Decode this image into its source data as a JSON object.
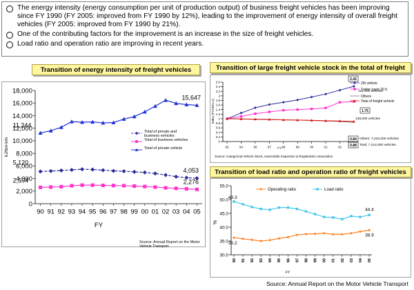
{
  "notes": [
    "The energy intensity (energy consumption per unit of production output) of business freight vehicles has been improving since FY 1990 (FY 2005: improved from FY 1990 by 12%), leading to the improvement of energy intensity of overall freight vehicles (FY 2005: improved from FY 1990 by 21%).",
    "One of the contributing factors for the improvement is an increase in the size of freight vehicles.",
    "Load ratio and operation ratio are improving in recent years."
  ],
  "titles": {
    "energy": "Transition of energy intensity of freight vehicles",
    "stock": "Transition of large freight vehicle stock in the total of freight vehicles",
    "load": "Transition of load ratio and operation ratio of freight vehicles"
  },
  "sources": {
    "energy": "Source:  Annual Report on the Motor Vehicle Transport",
    "stock": "Source:  Categorical  Vehicle  Stock,  Automobile  Inspection  &  Registration  Association",
    "bottom": "Source: Annual Report on the Motor Vehicle Transport"
  },
  "colors": {
    "title_bg": "#fff6a0",
    "navy": "#2a2a9a",
    "blue": "#1d2fd6",
    "magenta": "#ff33cc",
    "red": "#e01010",
    "orange": "#ff7f1e",
    "cyan": "#44c6ea"
  },
  "chart_data": [
    {
      "id": "energy",
      "type": "line",
      "x": [
        "90",
        "91",
        "92",
        "93",
        "94",
        "95",
        "96",
        "97",
        "98",
        "99",
        "00",
        "01",
        "02",
        "03",
        "04",
        "05"
      ],
      "xlabel": "FY",
      "ylabel": "kJ/ton-km",
      "ylim": [
        0,
        18000
      ],
      "yticks": [
        "0",
        "2,000",
        "4,000",
        "6,000",
        "8,000",
        "10,000",
        "12,000",
        "14,000",
        "16,000",
        "18,000"
      ],
      "grid": false,
      "legend_position": "center-right",
      "series": [
        {
          "name": "Total of private and business vehicles",
          "color": "#2a2a9a",
          "marker": "diamond",
          "dashed": true,
          "values": [
            5120,
            5180,
            5280,
            5380,
            5480,
            5430,
            5330,
            5220,
            5160,
            5060,
            4960,
            4800,
            4560,
            4300,
            4130,
            4053
          ]
        },
        {
          "name": "Total of business vehicles",
          "color": "#ff33cc",
          "marker": "square",
          "dashed": false,
          "values": [
            2594,
            2640,
            2700,
            2850,
            2950,
            2950,
            2910,
            2890,
            2860,
            2800,
            2730,
            2640,
            2520,
            2440,
            2360,
            2276
          ]
        },
        {
          "name": "Total of private vehicle",
          "color": "#1d2fd6",
          "marker": "triangle",
          "dashed": false,
          "values": [
            11244,
            11600,
            12150,
            13050,
            12950,
            13000,
            12850,
            12900,
            13450,
            13850,
            14600,
            15500,
            16450,
            15950,
            15750,
            15647
          ]
        }
      ],
      "data_labels": [
        {
          "text": "11,244",
          "series": 2,
          "index": 0
        },
        {
          "text": "15,647",
          "series": 2,
          "index": 15
        },
        {
          "text": "5,120",
          "series": 0,
          "index": 0
        },
        {
          "text": "4,053",
          "series": 0,
          "index": 15
        },
        {
          "text": "2,594",
          "series": 1,
          "index": 0
        },
        {
          "text": "2,276",
          "series": 1,
          "index": 15
        }
      ]
    },
    {
      "id": "stock",
      "type": "line",
      "x": [
        "92",
        "94",
        "96",
        "97",
        "98",
        "99",
        "00",
        "01",
        "02",
        "03"
      ],
      "xlabel": "FY",
      "ylabel": "Index (FY1991=1)",
      "ylim": [
        0,
        2.6
      ],
      "yticks": [
        "0",
        "0.2",
        "0.4",
        "0.6",
        "0.8",
        "1",
        "1.2",
        "1.4",
        "1.6",
        "1.8",
        "2",
        "2.2",
        "2.4",
        "2.6"
      ],
      "legend_position": "top-right",
      "series": [
        {
          "name": "20t vehicle",
          "color": "#2a2a9a",
          "marker": "diamond",
          "values": [
            1.0,
            1.25,
            1.48,
            1.62,
            1.72,
            1.82,
            1.95,
            2.08,
            2.25,
            2.42
          ]
        },
        {
          "name": "Trailer (over 20 t)",
          "color": "#ff33cc",
          "marker": "square",
          "values": [
            1.0,
            1.1,
            1.22,
            1.3,
            1.37,
            1.4,
            1.43,
            1.47,
            1.72,
            1.75
          ]
        },
        {
          "name": "Others",
          "color": "#808080",
          "marker": "none",
          "values": [
            1.0,
            0.99,
            0.97,
            0.96,
            0.95,
            0.94,
            0.92,
            0.9,
            0.88,
            0.84
          ]
        },
        {
          "name": "Total of freight vehicle",
          "color": "#e01010",
          "marker": "triangle",
          "values": [
            1.0,
            0.99,
            0.98,
            0.97,
            0.95,
            0.94,
            0.93,
            0.91,
            0.9,
            0.88
          ]
        }
      ],
      "annotations": [
        "2.42",
        "121,000 vehicles",
        "1.75",
        "138,000 vehicles",
        "0.84",
        "Others: 7,222,000 vehicles",
        "0.88",
        "Total: 7,414,000 vehicles"
      ]
    },
    {
      "id": "load",
      "type": "line",
      "x": [
        "90",
        "91",
        "92",
        "93",
        "94",
        "95",
        "96",
        "97",
        "98",
        "99",
        "00",
        "01",
        "02",
        "03",
        "04",
        "05"
      ],
      "xlabel": "FY",
      "ylabel": "%",
      "ylim": [
        30,
        55
      ],
      "yticks": [
        "30.0",
        "35.0",
        "40.0",
        "45.0",
        "50.0",
        "55.0"
      ],
      "legend_position": "top",
      "series": [
        {
          "name": "Operating ratio",
          "color": "#ff7f1e",
          "marker": "diamond",
          "values": [
            36.2,
            35.8,
            35.4,
            35.0,
            35.3,
            35.9,
            36.4,
            37.2,
            37.5,
            37.6,
            37.8,
            37.4,
            37.4,
            37.8,
            38.4,
            38.9
          ]
        },
        {
          "name": "Load ratio",
          "color": "#44c6ea",
          "marker": "square",
          "values": [
            49.3,
            48.3,
            47.3,
            46.6,
            46.3,
            47.1,
            47.1,
            46.6,
            45.7,
            44.7,
            43.7,
            43.5,
            42.9,
            44.0,
            43.7,
            44.4
          ]
        }
      ],
      "data_labels": [
        {
          "text": "49.3",
          "series": 1,
          "index": 0
        },
        {
          "text": "44.4",
          "series": 1,
          "index": 15
        },
        {
          "text": "36.2",
          "series": 0,
          "index": 0
        },
        {
          "text": "38.9",
          "series": 0,
          "index": 15
        }
      ]
    }
  ]
}
